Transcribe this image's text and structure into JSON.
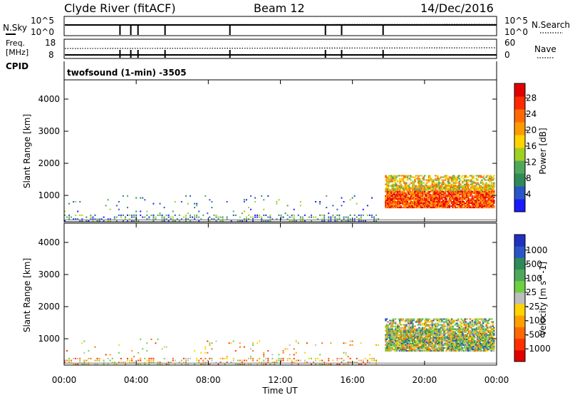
{
  "header": {
    "station": "Clyde River (fitACF)",
    "beam": "Beam 12",
    "date": "14/Dec/2016"
  },
  "nsky_panel": {
    "left_label": "N.Sky",
    "right_label": "N.Search",
    "left_ticks": [
      "10^5",
      "10^0"
    ],
    "right_ticks": [
      "10^5",
      "10^0"
    ]
  },
  "freq_panel": {
    "left_label_1": "Freq.",
    "left_label_2": "[MHz]",
    "right_label": "Nave",
    "left_ticks": [
      "18",
      "8"
    ],
    "right_ticks": [
      "60",
      "0"
    ]
  },
  "cpid": {
    "label": "CPID",
    "value": "twofsound (1-min) -3505"
  },
  "chart_data": [
    {
      "type": "heatmap",
      "name": "power",
      "ylabel": "Slant Range [km]",
      "xlabel": "",
      "yticks": [
        1000,
        2000,
        3000,
        4000
      ],
      "ylim": [
        180,
        4600
      ],
      "xlim": [
        0,
        24
      ],
      "colorbar": {
        "label": "Power [dB]",
        "ticks": [
          "4",
          "8",
          "12",
          "16",
          "20",
          "24",
          "28"
        ],
        "colors": [
          "#1a1aff",
          "#2a55c8",
          "#2e8b57",
          "#4fa85a",
          "#a0d020",
          "#ffd400",
          "#ff9a00",
          "#ff6a00",
          "#ff2a00",
          "#e00000"
        ]
      },
      "echo_regions": [
        {
          "t0": 17.8,
          "t1": 23.8,
          "r0": 600,
          "r1": 1600,
          "level": "high"
        },
        {
          "t0": 0.0,
          "t1": 17.5,
          "r0": 180,
          "r1": 1000,
          "level": "low"
        }
      ]
    },
    {
      "type": "heatmap",
      "name": "velocity",
      "ylabel": "Slant Range [km]",
      "xlabel": "Time UT",
      "xticks": [
        "00:00",
        "04:00",
        "08:00",
        "12:00",
        "16:00",
        "20:00",
        "00:00"
      ],
      "yticks": [
        1000,
        2000,
        3000,
        4000
      ],
      "ylim": [
        180,
        4600
      ],
      "xlim": [
        0,
        24
      ],
      "colorbar": {
        "label": "Velocity [m s^-1]",
        "ticks": [
          "1000",
          "500",
          "100",
          "25",
          "-25",
          "-100",
          "-500",
          "-1000"
        ],
        "colors": [
          "#2030c0",
          "#2a55c8",
          "#2e8b57",
          "#4fa85a",
          "#6cd040",
          "#bdbdbd",
          "#ffd400",
          "#ffa000",
          "#ff6a00",
          "#ff3000",
          "#e00000"
        ]
      },
      "echo_regions": [
        {
          "t0": 17.8,
          "t1": 23.8,
          "r0": 600,
          "r1": 1600,
          "level": "mixed"
        },
        {
          "t0": 0.0,
          "t1": 17.5,
          "r0": 180,
          "r1": 1000,
          "level": "low"
        }
      ]
    }
  ]
}
